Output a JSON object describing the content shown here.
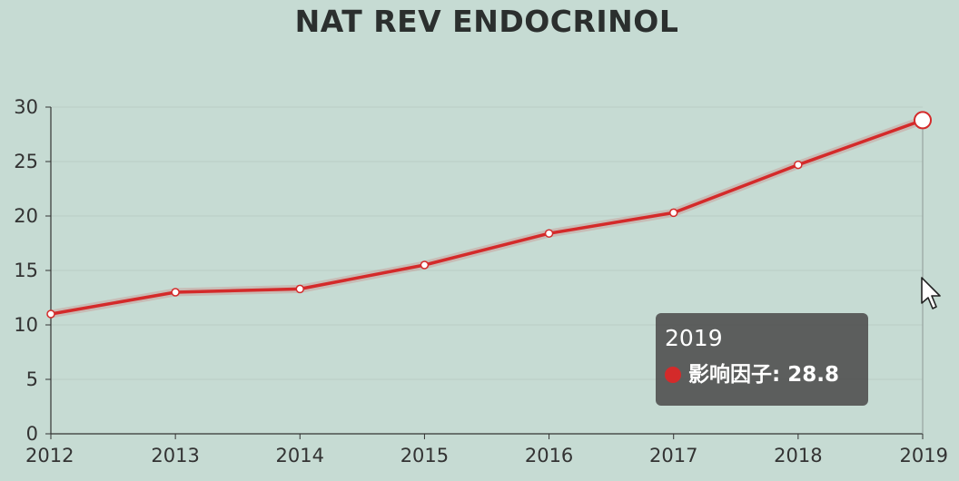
{
  "chart_data": {
    "type": "line",
    "title": "NAT REV ENDOCRINOL",
    "categories": [
      "2012",
      "2013",
      "2014",
      "2015",
      "2016",
      "2017",
      "2018",
      "2019"
    ],
    "series": [
      {
        "name": "影响因子",
        "values": [
          11.0,
          13.0,
          13.3,
          15.5,
          18.4,
          20.3,
          24.7,
          28.8
        ]
      }
    ],
    "y_ticks": [
      "0",
      "5",
      "10",
      "15",
      "20",
      "25",
      "30"
    ],
    "ylim": [
      0,
      30
    ],
    "grid": true,
    "line_color": "#d42a2a",
    "tooltip": {
      "title": "2019",
      "series_label": "影响因子",
      "value": "28.8",
      "text": "影响因子: 28.8"
    }
  },
  "colors": {
    "background": "#c6dbd3",
    "line": "#d42a2a",
    "axis": "#333333",
    "tooltip_bg": "#505050"
  }
}
